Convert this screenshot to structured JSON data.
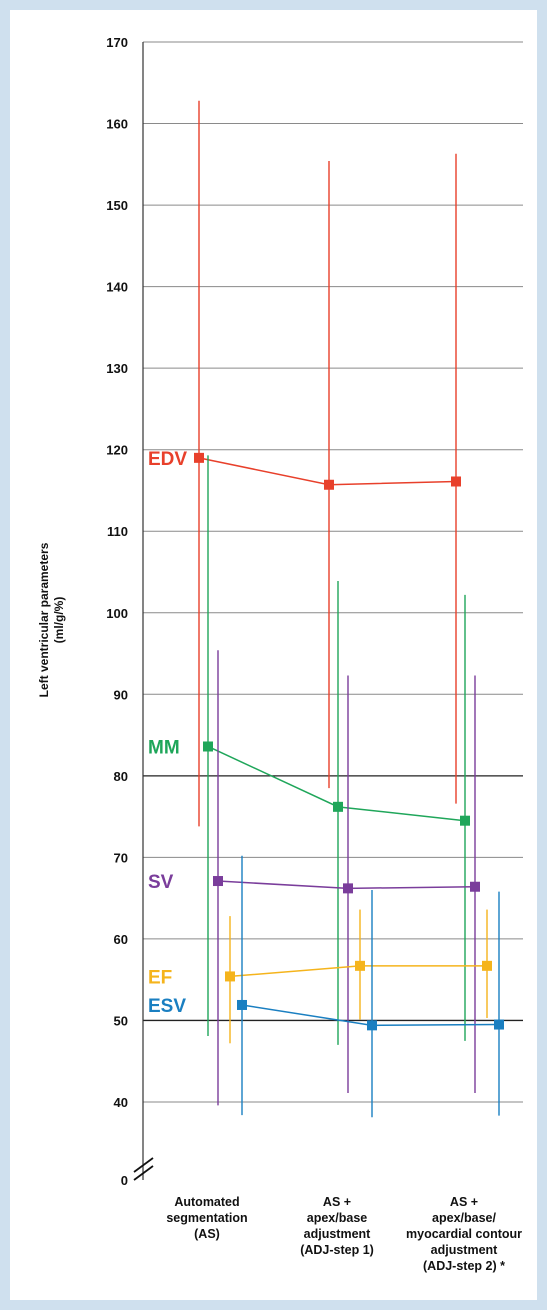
{
  "chart_data": {
    "type": "line",
    "ylabel_lines": [
      "Left ventricular parameters",
      "(ml/g/%)"
    ],
    "ylim": [
      0,
      170
    ],
    "axis_break": true,
    "y_ticks": [
      "0",
      "40",
      "50",
      "60",
      "70",
      "80",
      "90",
      "100",
      "110",
      "120",
      "130",
      "140",
      "150",
      "160",
      "170"
    ],
    "categories": [
      [
        "Automated",
        "segmentation",
        "(AS)"
      ],
      [
        "AS +",
        "apex/base",
        "adjustment",
        "(ADJ-step  1)"
      ],
      [
        "AS +",
        "apex/base/",
        "myocardial contour",
        "adjustment",
        "(ADJ-step  2) *"
      ]
    ],
    "series": [
      {
        "name": "EDV",
        "color": "#e8402b",
        "values": [
          119,
          115.7,
          116.1
        ],
        "upper": [
          162.8,
          155.4,
          156.3
        ],
        "lower": [
          73.8,
          78.5,
          76.6
        ]
      },
      {
        "name": "MM",
        "color": "#1fa65a",
        "values": [
          83.6,
          76.2,
          74.5
        ],
        "upper": [
          119.3,
          103.9,
          102.2
        ],
        "lower": [
          48.1,
          47.0,
          47.5
        ]
      },
      {
        "name": "SV",
        "color": "#7a3d9b",
        "values": [
          67.1,
          66.2,
          66.4
        ],
        "upper": [
          95.4,
          92.3,
          92.3
        ],
        "lower": [
          38.3,
          41.1,
          41.1
        ]
      },
      {
        "name": "EF",
        "color": "#f5b41c",
        "values": [
          55.4,
          56.7,
          56.7
        ],
        "upper": [
          62.8,
          63.6,
          63.6
        ],
        "lower": [
          47.2,
          50.1,
          50.3
        ]
      },
      {
        "name": "ESV",
        "color": "#1a7fc1",
        "values": [
          51.9,
          49.4,
          49.5
        ],
        "upper": [
          70.2,
          66.0,
          65.8
        ],
        "lower": [
          33.3,
          32.2,
          33.0
        ]
      }
    ]
  }
}
